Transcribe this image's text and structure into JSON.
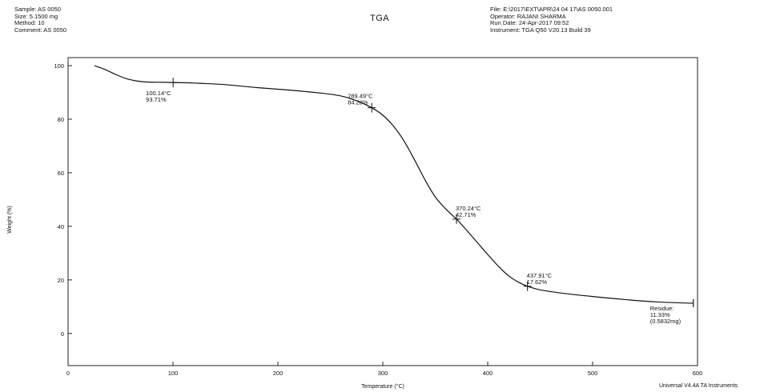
{
  "header": {
    "left": [
      "Sample: AS 0050",
      "Size: 5.1500 mg",
      "Method: 10",
      "Comment: AS 0050"
    ],
    "right": [
      "File: E:\\2017\\EXT\\APR\\24 04 17\\AS 0050.001",
      "Operator: RAJANI SHARMA",
      "Run Date: 24-Apr-2017 09:52",
      "Instrument: TGA Q50 V20.13 Build 39"
    ]
  },
  "footer": "Universal V4.4A TA Instruments",
  "chart_data": {
    "type": "line",
    "title": "TGA",
    "xlabel": "Temperature (°C)",
    "ylabel": "Weight (%)",
    "xlim": [
      0,
      600
    ],
    "ylim": [
      -12,
      103
    ],
    "x_ticks": [
      "0",
      "100",
      "200",
      "300",
      "400",
      "500",
      "600"
    ],
    "y_ticks": [
      "0",
      "20",
      "40",
      "60",
      "80",
      "100"
    ],
    "grid": false,
    "series": [
      {
        "color": "#111111",
        "x": [
          25,
          35,
          45,
          55,
          65,
          75,
          85,
          100,
          120,
          150,
          180,
          210,
          240,
          260,
          275,
          289.49,
          300,
          310,
          320,
          330,
          340,
          350,
          360,
          370.24,
          380,
          390,
          400,
          410,
          420,
          430,
          437.91,
          450,
          470,
          500,
          530,
          560,
          590,
          596
        ],
        "y": [
          100,
          98.6,
          96.8,
          95.2,
          94.3,
          93.9,
          93.8,
          93.71,
          93.5,
          92.9,
          91.8,
          90.9,
          89.8,
          88.7,
          86.9,
          84.28,
          81.5,
          77.5,
          72.0,
          65.0,
          57.5,
          51.0,
          46.5,
          42.71,
          38.5,
          34.0,
          29.5,
          25.2,
          21.5,
          19.0,
          17.62,
          16.3,
          15.1,
          13.8,
          12.7,
          11.8,
          11.35,
          11.33
        ]
      }
    ],
    "annotations": [
      {
        "x": 100.14,
        "y": 93.71,
        "lines": [
          "100.14°C",
          "93.71%"
        ],
        "pos": "below"
      },
      {
        "x": 289.49,
        "y": 84.28,
        "lines": [
          "289.49°C",
          "84.28%"
        ],
        "pos": "above"
      },
      {
        "x": 370.24,
        "y": 42.71,
        "lines": [
          "370.24°C",
          "42.71%"
        ],
        "pos": "above-right"
      },
      {
        "x": 437.91,
        "y": 17.62,
        "lines": [
          "437.91°C",
          "17.62%"
        ],
        "pos": "above-right"
      }
    ],
    "residue": {
      "x": 596,
      "y": 11.33,
      "lines": [
        "Residue:",
        "11.33%",
        "(0.5832mg)"
      ]
    }
  }
}
